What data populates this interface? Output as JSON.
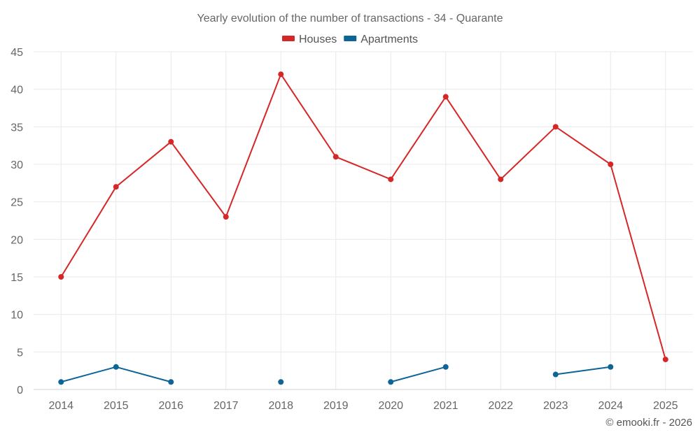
{
  "chart_data": {
    "type": "line",
    "title": "Yearly evolution of the number of transactions - 34 - Quarante",
    "xlabel": "",
    "ylabel": "",
    "categories": [
      "2014",
      "2015",
      "2016",
      "2017",
      "2018",
      "2019",
      "2020",
      "2021",
      "2022",
      "2023",
      "2024",
      "2025"
    ],
    "ylim": [
      0,
      45
    ],
    "yticks": [
      0,
      5,
      10,
      15,
      20,
      25,
      30,
      35,
      40,
      45
    ],
    "grid": true,
    "legend_position": "top-center",
    "series": [
      {
        "name": "Houses",
        "color": "#d62728",
        "values": [
          15,
          27,
          33,
          23,
          42,
          31,
          28,
          39,
          28,
          35,
          30,
          4
        ]
      },
      {
        "name": "Apartments",
        "color": "#0d6496",
        "values": [
          1,
          3,
          1,
          null,
          1,
          null,
          1,
          3,
          null,
          2,
          3,
          null
        ]
      }
    ]
  },
  "credit": "© emooki.fr - 2026"
}
